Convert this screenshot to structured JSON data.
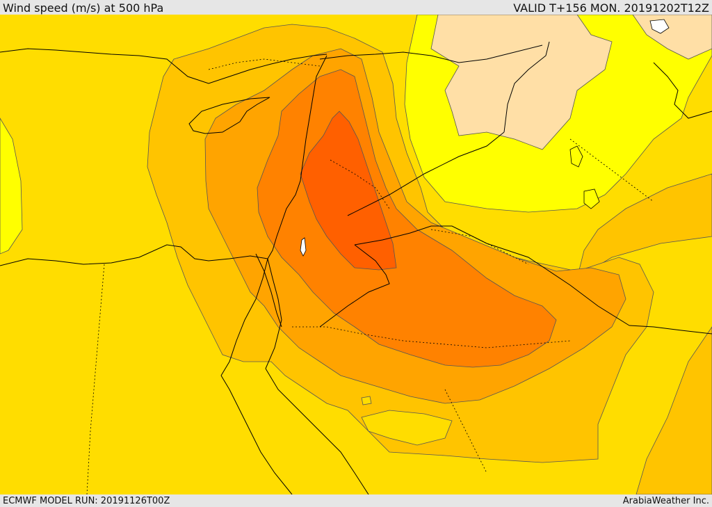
{
  "header": {
    "title": "Wind speed (m/s) at 500 hPa",
    "valid_time": "VALID T+156 MON. 20191202T12Z"
  },
  "footer": {
    "model_run": "ECMWF MODEL RUN: 20191126T00Z",
    "provider": "ArabiaWeather Inc."
  },
  "colors": {
    "band_bright_yellow": "#ffff00",
    "band_gold": "#ffdd00",
    "band_amber": "#ffc400",
    "band_orange_light": "#ffa400",
    "band_orange": "#ff8200",
    "band_orange_deep": "#ff6000",
    "calm_region": "#ffdfa6",
    "lake": "#ffffff",
    "border": "#000000",
    "contour": "#555555"
  }
}
